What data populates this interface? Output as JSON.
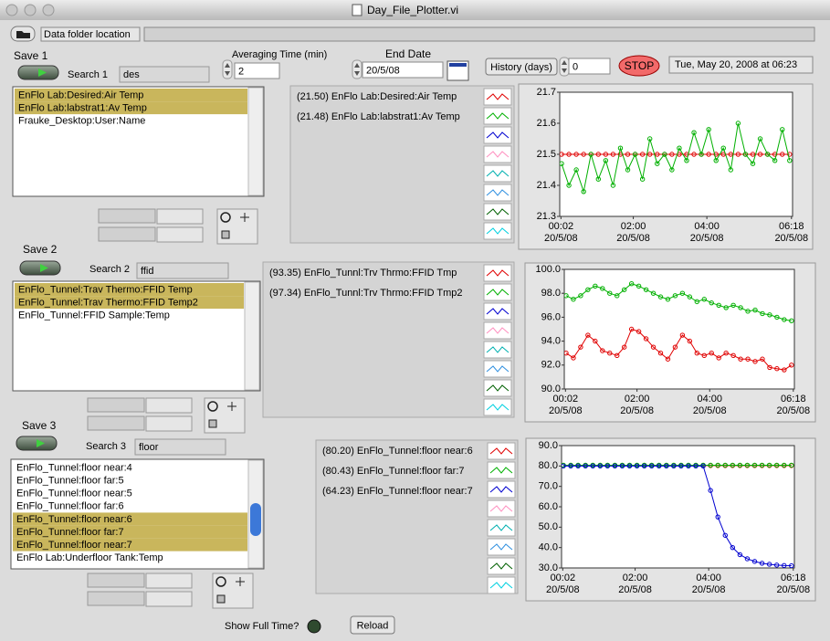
{
  "window": {
    "title": "Day_File_Plotter.vi"
  },
  "toolbar": {
    "folder_label": "Data folder location",
    "averaging_label": "Averaging Time (min)",
    "averaging_value": "2",
    "end_date_label": "End Date",
    "end_date_value": "20/5/08",
    "history_label": "History (days)",
    "history_value": "0",
    "stop": "STOP",
    "timestamp": "Tue, May 20, 2008 at 06:23"
  },
  "panels": [
    {
      "save": "Save 1",
      "search_label": "Search 1",
      "search": "des",
      "items": [
        {
          "text": "EnFlo Lab:Desired:Air Temp",
          "selected": true
        },
        {
          "text": "EnFlo Lab:labstrat1:Av Temp",
          "selected": true
        },
        {
          "text": "Frauke_Desktop:User:Name",
          "selected": false
        }
      ]
    },
    {
      "save": "Save 2",
      "search_label": "Search 2",
      "search": "ffid",
      "items": [
        {
          "text": "EnFlo_Tunnel:Trav Thermo:FFID Temp",
          "selected": true
        },
        {
          "text": "EnFlo_Tunnel:Trav Thermo:FFID Temp2",
          "selected": true
        },
        {
          "text": "EnFlo_Tunnel:FFID Sample:Temp",
          "selected": false
        }
      ]
    },
    {
      "save": "Save 3",
      "search_label": "Search 3",
      "search": "floor",
      "items": [
        {
          "text": "EnFlo_Tunnel:floor near:4",
          "selected": false
        },
        {
          "text": "EnFlo_Tunnel:floor far:5",
          "selected": false
        },
        {
          "text": "EnFlo_Tunnel:floor near:5",
          "selected": false
        },
        {
          "text": "EnFlo_Tunnel:floor far:6",
          "selected": false
        },
        {
          "text": "EnFlo_Tunnel:floor near:6",
          "selected": true
        },
        {
          "text": "EnFlo_Tunnel:floor far:7",
          "selected": true
        },
        {
          "text": "EnFlo_Tunnel:floor near:7",
          "selected": true
        },
        {
          "text": "EnFlo Lab:Underfloor Tank:Temp",
          "selected": false
        }
      ]
    }
  ],
  "footer": {
    "show_full_time": "Show Full Time?",
    "reload": "Reload"
  },
  "chart_data": [
    {
      "type": "line",
      "xlim": [
        0,
        6.33
      ],
      "ylim": [
        21.3,
        21.7
      ],
      "yticks": [
        21.3,
        21.4,
        21.5,
        21.6,
        21.7
      ],
      "xticks": [
        {
          "value": 0.033,
          "label": "00:02",
          "date": "20/5/08"
        },
        {
          "value": 2,
          "label": "02:00",
          "date": "20/5/08"
        },
        {
          "value": 4,
          "label": "04:00",
          "date": "20/5/08"
        },
        {
          "value": 6.3,
          "label": "06:18",
          "date": "20/5/08"
        }
      ],
      "x": [
        0.05,
        0.25,
        0.45,
        0.65,
        0.85,
        1.05,
        1.25,
        1.45,
        1.65,
        1.85,
        2.05,
        2.25,
        2.45,
        2.65,
        2.85,
        3.05,
        3.25,
        3.45,
        3.65,
        3.85,
        4.05,
        4.25,
        4.45,
        4.65,
        4.85,
        5.05,
        5.25,
        5.45,
        5.65,
        5.85,
        6.05,
        6.25
      ],
      "series": [
        {
          "name": "(21.50) EnFlo Lab:Desired:Air Temp",
          "color": "#e00000",
          "values": [
            21.5,
            21.5,
            21.5,
            21.5,
            21.5,
            21.5,
            21.5,
            21.5,
            21.5,
            21.5,
            21.5,
            21.5,
            21.5,
            21.5,
            21.5,
            21.5,
            21.5,
            21.5,
            21.5,
            21.5,
            21.5,
            21.5,
            21.5,
            21.5,
            21.5,
            21.5,
            21.5,
            21.5,
            21.5,
            21.5,
            21.5,
            21.5
          ]
        },
        {
          "name": "(21.48) EnFlo Lab:labstrat1:Av Temp",
          "color": "#00b000",
          "values": [
            21.47,
            21.4,
            21.45,
            21.38,
            21.5,
            21.42,
            21.48,
            21.4,
            21.52,
            21.45,
            21.5,
            21.42,
            21.55,
            21.47,
            21.5,
            21.45,
            21.52,
            21.48,
            21.57,
            21.5,
            21.58,
            21.48,
            21.52,
            21.45,
            21.6,
            21.5,
            21.47,
            21.55,
            21.5,
            21.48,
            21.58,
            21.48
          ]
        }
      ]
    },
    {
      "type": "line",
      "xlim": [
        0,
        6.33
      ],
      "ylim": [
        90,
        100
      ],
      "yticks": [
        {
          "value": 90,
          "label": "90.0"
        },
        {
          "value": 92,
          "label": "92.0"
        },
        {
          "value": 94,
          "label": "94.0"
        },
        {
          "value": 96,
          "label": "96.0"
        },
        {
          "value": 98,
          "label": "98.0"
        },
        {
          "value": 100,
          "label": "100.0"
        }
      ],
      "xticks": [
        {
          "value": 0.033,
          "label": "00:02",
          "date": "20/5/08"
        },
        {
          "value": 2,
          "label": "02:00",
          "date": "20/5/08"
        },
        {
          "value": 4,
          "label": "04:00",
          "date": "20/5/08"
        },
        {
          "value": 6.3,
          "label": "06:18",
          "date": "20/5/08"
        }
      ],
      "x": [
        0.05,
        0.25,
        0.45,
        0.65,
        0.85,
        1.05,
        1.25,
        1.45,
        1.65,
        1.85,
        2.05,
        2.25,
        2.45,
        2.65,
        2.85,
        3.05,
        3.25,
        3.45,
        3.65,
        3.85,
        4.05,
        4.25,
        4.45,
        4.65,
        4.85,
        5.05,
        5.25,
        5.45,
        5.65,
        5.85,
        6.05,
        6.25
      ],
      "series": [
        {
          "name": "(93.35) EnFlo_Tunnl:Trv Thrmo:FFID Tmp",
          "color": "#e00000",
          "values": [
            93.0,
            92.6,
            93.5,
            94.5,
            94.0,
            93.2,
            93.0,
            92.8,
            93.5,
            95.0,
            94.8,
            94.2,
            93.5,
            93.0,
            92.5,
            93.5,
            94.5,
            94.0,
            93.0,
            92.8,
            93.0,
            92.6,
            93.0,
            92.8,
            92.5,
            92.5,
            92.3,
            92.5,
            91.8,
            91.7,
            91.6,
            92.0
          ]
        },
        {
          "name": "(97.34) EnFlo_Tunnl:Trv Thrmo:FFID Tmp2",
          "color": "#00b000",
          "values": [
            97.8,
            97.5,
            97.8,
            98.3,
            98.6,
            98.4,
            98.0,
            97.8,
            98.3,
            98.8,
            98.6,
            98.3,
            98.0,
            97.7,
            97.5,
            97.8,
            98.0,
            97.7,
            97.3,
            97.5,
            97.2,
            97.0,
            96.8,
            97.0,
            96.8,
            96.5,
            96.6,
            96.3,
            96.2,
            96.0,
            95.8,
            95.7
          ]
        }
      ]
    },
    {
      "type": "line",
      "xlim": [
        0,
        6.33
      ],
      "ylim": [
        30,
        90
      ],
      "yticks": [
        {
          "value": 30,
          "label": "30.0"
        },
        {
          "value": 40,
          "label": "40.0"
        },
        {
          "value": 50,
          "label": "50.0"
        },
        {
          "value": 60,
          "label": "60.0"
        },
        {
          "value": 70,
          "label": "70.0"
        },
        {
          "value": 80,
          "label": "80.0"
        },
        {
          "value": 90,
          "label": "90.0"
        }
      ],
      "xticks": [
        {
          "value": 0.033,
          "label": "00:02",
          "date": "20/5/08"
        },
        {
          "value": 2,
          "label": "02:00",
          "date": "20/5/08"
        },
        {
          "value": 4,
          "label": "04:00",
          "date": "20/5/08"
        },
        {
          "value": 6.3,
          "label": "06:18",
          "date": "20/5/08"
        }
      ],
      "x": [
        0.05,
        0.25,
        0.45,
        0.65,
        0.85,
        1.05,
        1.25,
        1.45,
        1.65,
        1.85,
        2.05,
        2.25,
        2.45,
        2.65,
        2.85,
        3.05,
        3.25,
        3.45,
        3.65,
        3.85,
        4.05,
        4.25,
        4.45,
        4.65,
        4.85,
        5.05,
        5.25,
        5.45,
        5.65,
        5.85,
        6.05,
        6.25
      ],
      "series": [
        {
          "name": "(80.20) EnFlo_Tunnel:floor near:6",
          "color": "#e00000",
          "values": [
            80.2,
            80.2,
            80.2,
            80.2,
            80.2,
            80.2,
            80.2,
            80.2,
            80.2,
            80.2,
            80.2,
            80.2,
            80.2,
            80.2,
            80.2,
            80.2,
            80.2,
            80.2,
            80.2,
            80.2,
            80.2,
            80.2,
            80.2,
            80.2,
            80.2,
            80.2,
            80.2,
            80.2,
            80.2,
            80.2,
            80.2,
            80.2
          ]
        },
        {
          "name": "(80.43) EnFlo_Tunnel:floor far:7",
          "color": "#00b000",
          "values": [
            80.4,
            80.4,
            80.4,
            80.4,
            80.4,
            80.4,
            80.4,
            80.4,
            80.4,
            80.4,
            80.4,
            80.4,
            80.4,
            80.4,
            80.4,
            80.4,
            80.4,
            80.4,
            80.4,
            80.4,
            80.4,
            80.4,
            80.4,
            80.4,
            80.4,
            80.4,
            80.4,
            80.4,
            80.4,
            80.4,
            80.4,
            80.4
          ]
        },
        {
          "name": "(64.23) EnFlo_Tunnel:floor near:7",
          "color": "#0000d0",
          "values": [
            80,
            80,
            80,
            80,
            80,
            80,
            80,
            80,
            80,
            80,
            80,
            80,
            80,
            80,
            80,
            80,
            80,
            80,
            80,
            80,
            68,
            55,
            46,
            40,
            36.5,
            34.5,
            33.2,
            32.3,
            31.8,
            31.4,
            31.2,
            31.1
          ]
        }
      ]
    }
  ]
}
